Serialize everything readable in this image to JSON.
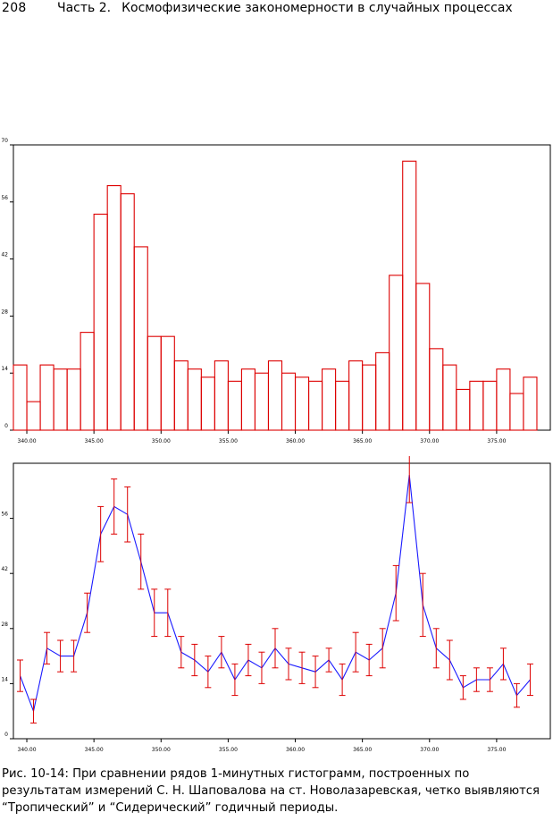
{
  "header": {
    "page_number": "208",
    "part_label": "Часть 2.",
    "part_title": "Космофизические закономерности в случайных процессах"
  },
  "chart_data": [
    {
      "type": "bar",
      "title": "",
      "xlabel": "",
      "ylabel": "",
      "x_start": 339,
      "bin_width": 1,
      "values": [
        16,
        7,
        16,
        15,
        15,
        24,
        53,
        60,
        58,
        45,
        23,
        23,
        17,
        15,
        13,
        17,
        12,
        15,
        14,
        17,
        14,
        13,
        12,
        15,
        12,
        17,
        16,
        19,
        38,
        66,
        36,
        20,
        16,
        10,
        12,
        12,
        15,
        9,
        13
      ],
      "xlim": [
        339,
        379
      ],
      "ylim": [
        0,
        70
      ],
      "xticks": [
        340,
        345,
        350,
        355,
        360,
        365,
        370,
        375
      ],
      "xtick_labels": [
        "340.00",
        "345.00",
        "350.00",
        "355.00",
        "360.00",
        "365.00",
        "370.00",
        "375.00"
      ],
      "yticks": [
        0,
        14,
        28,
        42,
        56,
        70
      ],
      "ytick_labels": [
        "0",
        "14",
        "28",
        "42",
        "56",
        "70"
      ],
      "color": "#dd0000",
      "grid": false
    },
    {
      "type": "line",
      "title": "",
      "xlabel": "",
      "ylabel": "",
      "x": [
        339.5,
        340.5,
        341.5,
        342.5,
        343.5,
        344.5,
        345.5,
        346.5,
        347.5,
        348.5,
        349.5,
        350.5,
        351.5,
        352.5,
        353.5,
        354.5,
        355.5,
        356.5,
        357.5,
        358.5,
        359.5,
        360.5,
        361.5,
        362.5,
        363.5,
        364.5,
        365.5,
        366.5,
        367.5,
        368.5,
        369.5,
        370.5,
        371.5,
        372.5,
        373.5,
        374.5,
        375.5,
        376.5,
        377.5
      ],
      "y": [
        16,
        7,
        23,
        21,
        21,
        32,
        52,
        59,
        57,
        45,
        32,
        32,
        22,
        20,
        17,
        22,
        15,
        20,
        18,
        23,
        19,
        18,
        17,
        20,
        15,
        22,
        20,
        23,
        37,
        67,
        34,
        23,
        20,
        13,
        15,
        15,
        19,
        11,
        15
      ],
      "err": [
        4,
        3,
        4,
        4,
        4,
        5,
        7,
        7,
        7,
        7,
        6,
        6,
        4,
        4,
        4,
        4,
        4,
        4,
        4,
        5,
        4,
        4,
        4,
        3,
        4,
        5,
        4,
        5,
        7,
        7,
        8,
        5,
        5,
        3,
        3,
        3,
        4,
        3,
        4
      ],
      "xlim": [
        339,
        379
      ],
      "ylim": [
        0,
        70
      ],
      "xticks": [
        340,
        345,
        350,
        355,
        360,
        365,
        370,
        375
      ],
      "xtick_labels": [
        "340.00",
        "345.00",
        "350.00",
        "355.00",
        "360.00",
        "365.00",
        "370.00",
        "375.00"
      ],
      "yticks": [
        0,
        14,
        28,
        42,
        56
      ],
      "ytick_labels": [
        "0",
        "14",
        "28",
        "42",
        "56"
      ],
      "line_color": "#1a1aff",
      "errorbar_color": "#dd0000",
      "grid": false
    }
  ],
  "caption": {
    "text": "Рис. 10-14: При сравнении рядов 1-минутных гистограмм, построенных по результатам измерений С. Н. Шаповалова на ст. Новолазаревская, четко выявляются “Тропический” и “Сидерический” годичный периоды."
  }
}
